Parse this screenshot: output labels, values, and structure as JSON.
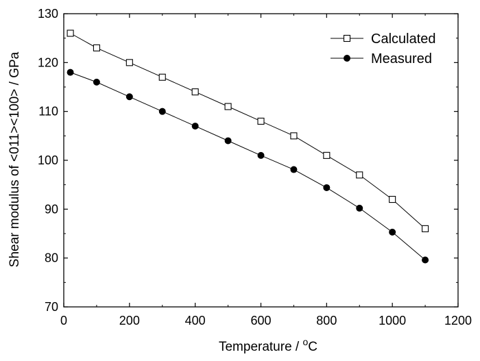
{
  "chart_data": {
    "type": "line",
    "xlabel": "Temperature / ",
    "xlabel_unit": "C",
    "xlabel_unit_superscript": "o",
    "ylabel": "Shear modulus of <011><100> / GPa",
    "xlim": [
      0,
      1200
    ],
    "ylim": [
      70,
      130
    ],
    "xticks": [
      0,
      200,
      400,
      600,
      800,
      1000,
      1200
    ],
    "yticks": [
      70,
      80,
      90,
      100,
      110,
      120,
      130
    ],
    "grid": false,
    "legend_position": "top-right",
    "series": [
      {
        "name": "Calculated",
        "marker": "open-square",
        "color": "#000000",
        "x": [
          20,
          100,
          200,
          300,
          400,
          500,
          600,
          700,
          800,
          900,
          1000,
          1100
        ],
        "y": [
          126,
          123,
          120,
          117,
          114,
          111,
          108,
          105,
          101,
          97,
          92,
          86
        ]
      },
      {
        "name": "Measured",
        "marker": "filled-circle",
        "color": "#000000",
        "x": [
          20,
          100,
          200,
          300,
          400,
          500,
          600,
          700,
          800,
          900,
          1000,
          1100
        ],
        "y": [
          118,
          116,
          113,
          110,
          107,
          104,
          101,
          98.1,
          94.4,
          90.2,
          85.3,
          79.6
        ]
      }
    ]
  }
}
